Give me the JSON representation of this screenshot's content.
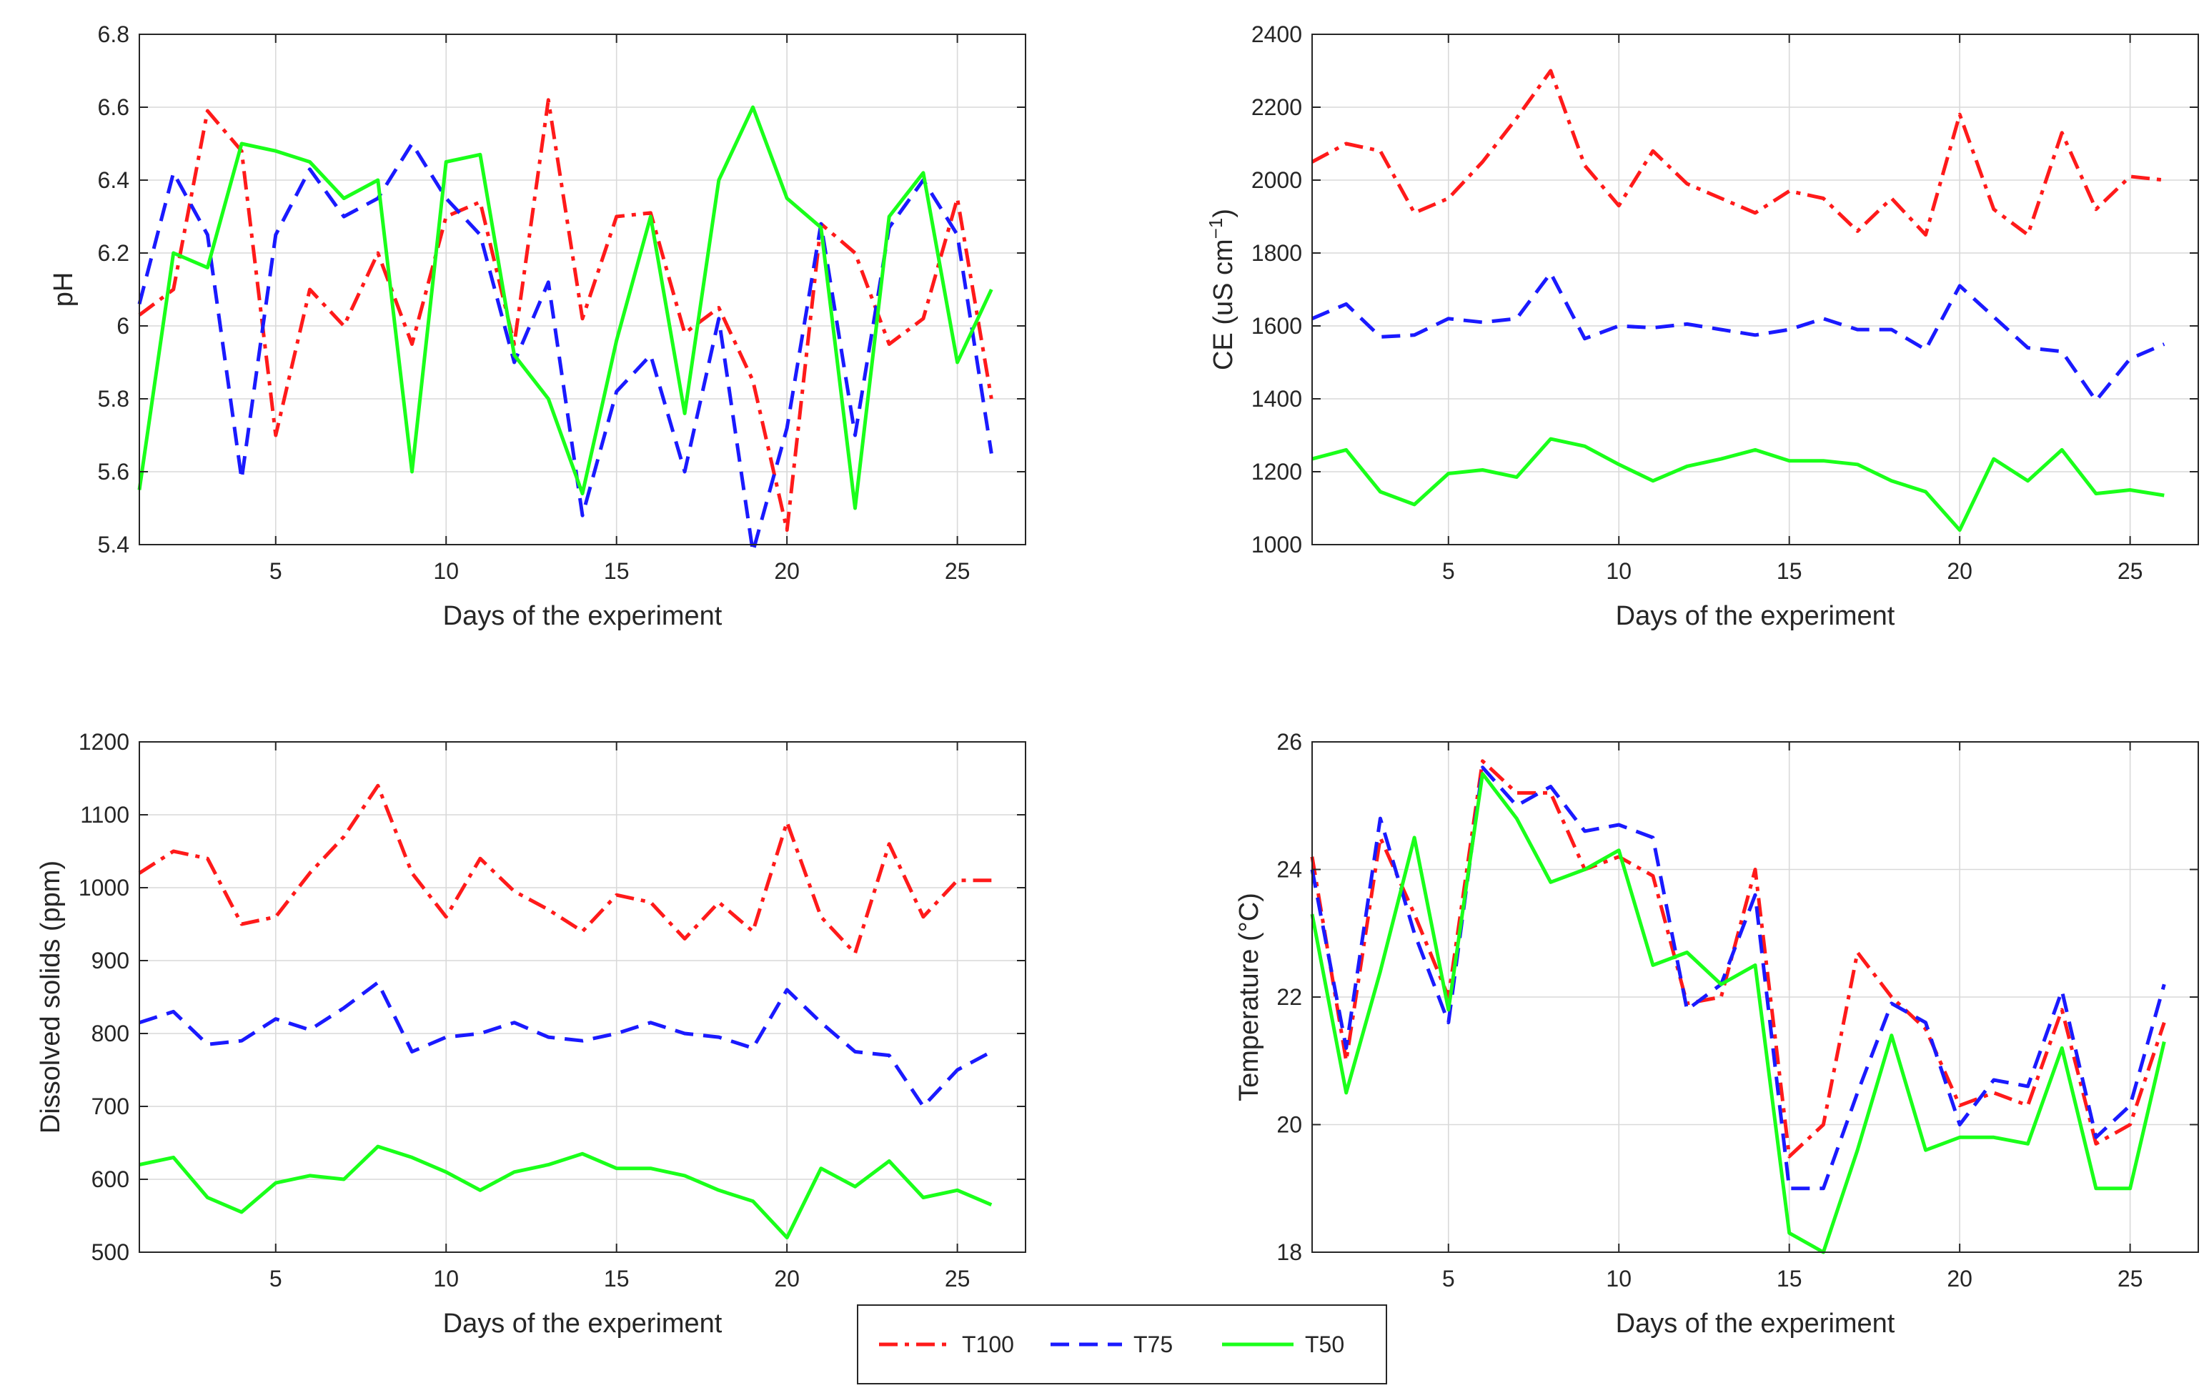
{
  "legend": {
    "entries": [
      {
        "name": "T100",
        "color": "#ff1a1a",
        "dash": "dashdot"
      },
      {
        "name": "T75",
        "color": "#1a1aff",
        "dash": "dash"
      },
      {
        "name": "T50",
        "color": "#1aff1a",
        "dash": "solid"
      }
    ]
  },
  "chart_data": [
    {
      "type": "line",
      "id": "ph",
      "xlabel": "Days of the experiment",
      "ylabel": "pH",
      "xlim": [
        1,
        27
      ],
      "ylim": [
        5.4,
        6.8
      ],
      "xticks": [
        5,
        10,
        15,
        20,
        25
      ],
      "yticks": [
        5.4,
        5.6,
        5.8,
        6,
        6.2,
        6.4,
        6.6,
        6.8
      ],
      "ytick_labels": [
        "5.4",
        "5.6",
        "5.8",
        "6",
        "6.2",
        "6.4",
        "6.6",
        "6.8"
      ],
      "grid": true,
      "x": [
        1,
        2,
        3,
        4,
        5,
        6,
        7,
        8,
        9,
        10,
        11,
        12,
        13,
        14,
        15,
        16,
        17,
        18,
        19,
        20,
        21,
        22,
        23,
        24,
        25,
        26
      ],
      "series": [
        {
          "name": "T100",
          "values": [
            6.03,
            6.1,
            6.59,
            6.48,
            5.7,
            6.1,
            6.0,
            6.2,
            5.95,
            6.3,
            6.34,
            5.95,
            6.62,
            6.02,
            6.3,
            6.31,
            5.98,
            6.05,
            5.85,
            5.44,
            6.28,
            6.2,
            5.95,
            6.02,
            6.35,
            5.8
          ]
        },
        {
          "name": "T75",
          "values": [
            6.06,
            6.42,
            6.25,
            5.58,
            6.25,
            6.43,
            6.3,
            6.35,
            6.5,
            6.35,
            6.25,
            5.9,
            6.12,
            5.48,
            5.82,
            5.92,
            5.6,
            6.02,
            5.38,
            5.72,
            6.28,
            5.7,
            6.27,
            6.4,
            6.25,
            5.65
          ]
        },
        {
          "name": "T50",
          "values": [
            5.55,
            6.2,
            6.16,
            6.5,
            6.48,
            6.45,
            6.35,
            6.4,
            5.6,
            6.45,
            6.47,
            5.92,
            5.8,
            5.54,
            5.96,
            6.3,
            5.76,
            6.4,
            6.6,
            6.35,
            6.27,
            5.5,
            6.3,
            6.42,
            5.9,
            6.1
          ]
        }
      ]
    },
    {
      "type": "line",
      "id": "ce",
      "xlabel": "Days of the experiment",
      "ylabel": "CE (uS cm",
      "ylabel_superscript": "−1",
      "ylabel_suffix": ")",
      "xlim": [
        1,
        27
      ],
      "ylim": [
        1000,
        2400
      ],
      "xticks": [
        5,
        10,
        15,
        20,
        25
      ],
      "yticks": [
        1000,
        1200,
        1400,
        1600,
        1800,
        2000,
        2200,
        2400
      ],
      "ytick_labels": [
        "1000",
        "1200",
        "1400",
        "1600",
        "1800",
        "2000",
        "2200",
        "2400"
      ],
      "grid": true,
      "x": [
        1,
        2,
        3,
        4,
        5,
        6,
        7,
        8,
        9,
        10,
        11,
        12,
        13,
        14,
        15,
        16,
        17,
        18,
        19,
        20,
        21,
        22,
        23,
        24,
        25,
        26
      ],
      "series": [
        {
          "name": "T100",
          "values": [
            2050,
            2100,
            2080,
            1910,
            1950,
            2050,
            2170,
            2300,
            2040,
            1930,
            2080,
            1990,
            1950,
            1910,
            1970,
            1950,
            1860,
            1950,
            1850,
            2180,
            1920,
            1850,
            2130,
            1920,
            2010,
            2000
          ]
        },
        {
          "name": "T75",
          "values": [
            1620,
            1660,
            1570,
            1575,
            1620,
            1610,
            1620,
            1745,
            1565,
            1600,
            1595,
            1605,
            1590,
            1575,
            1590,
            1620,
            1590,
            1590,
            1535,
            1710,
            1625,
            1540,
            1530,
            1395,
            1510,
            1550
          ]
        },
        {
          "name": "T50",
          "values": [
            1235,
            1260,
            1145,
            1110,
            1195,
            1205,
            1185,
            1290,
            1270,
            1220,
            1175,
            1215,
            1235,
            1260,
            1230,
            1230,
            1220,
            1175,
            1145,
            1040,
            1235,
            1175,
            1260,
            1140,
            1150,
            1135
          ]
        }
      ]
    },
    {
      "type": "line",
      "id": "dissolved-solids",
      "xlabel": "Days of the experiment",
      "ylabel": "Dissolved solids (ppm)",
      "xlim": [
        1,
        27
      ],
      "ylim": [
        500,
        1200
      ],
      "xticks": [
        5,
        10,
        15,
        20,
        25
      ],
      "yticks": [
        500,
        600,
        700,
        800,
        900,
        1000,
        1100,
        1200
      ],
      "ytick_labels": [
        "500",
        "600",
        "700",
        "800",
        "900",
        "1000",
        "1100",
        "1200"
      ],
      "grid": true,
      "x": [
        1,
        2,
        3,
        4,
        5,
        6,
        7,
        8,
        9,
        10,
        11,
        12,
        13,
        14,
        15,
        16,
        17,
        18,
        19,
        20,
        21,
        22,
        23,
        24,
        25,
        26
      ],
      "series": [
        {
          "name": "T100",
          "values": [
            1020,
            1050,
            1040,
            950,
            960,
            1020,
            1070,
            1140,
            1020,
            960,
            1040,
            995,
            970,
            940,
            990,
            980,
            930,
            980,
            940,
            1090,
            960,
            910,
            1060,
            960,
            1010,
            1010
          ]
        },
        {
          "name": "T75",
          "values": [
            815,
            830,
            785,
            790,
            820,
            805,
            835,
            870,
            775,
            795,
            800,
            815,
            795,
            790,
            800,
            815,
            800,
            795,
            780,
            860,
            815,
            775,
            770,
            700,
            750,
            775
          ]
        },
        {
          "name": "T50",
          "values": [
            620,
            630,
            575,
            555,
            595,
            605,
            600,
            645,
            630,
            610,
            585,
            610,
            620,
            635,
            615,
            615,
            605,
            585,
            570,
            520,
            615,
            590,
            625,
            575,
            585,
            565
          ]
        }
      ]
    },
    {
      "type": "line",
      "id": "temperature",
      "xlabel": "Days of the experiment",
      "ylabel": "Temperature (°C)",
      "xlim": [
        1,
        27
      ],
      "ylim": [
        18,
        26
      ],
      "xticks": [
        5,
        10,
        15,
        20,
        25
      ],
      "yticks": [
        18,
        20,
        22,
        24,
        26
      ],
      "ytick_labels": [
        "18",
        "20",
        "22",
        "24",
        "26"
      ],
      "grid": true,
      "x": [
        1,
        2,
        3,
        4,
        5,
        6,
        7,
        8,
        9,
        10,
        11,
        12,
        13,
        14,
        15,
        16,
        17,
        18,
        19,
        20,
        21,
        22,
        23,
        24,
        25,
        26
      ],
      "series": [
        {
          "name": "T100",
          "values": [
            24.2,
            21.0,
            24.5,
            23.3,
            22.0,
            25.7,
            25.2,
            25.2,
            24.0,
            24.2,
            23.9,
            21.9,
            22.0,
            24.0,
            19.5,
            20.0,
            22.7,
            22.0,
            21.5,
            20.3,
            20.5,
            20.3,
            21.8,
            19.7,
            20.0,
            21.6
          ]
        },
        {
          "name": "T75",
          "values": [
            24.0,
            21.2,
            24.8,
            23.0,
            21.6,
            25.6,
            25.0,
            25.3,
            24.6,
            24.7,
            24.5,
            21.8,
            22.2,
            23.6,
            19.0,
            19.0,
            20.5,
            21.9,
            21.6,
            20.0,
            20.7,
            20.6,
            22.1,
            19.8,
            20.3,
            22.2
          ]
        },
        {
          "name": "T50",
          "values": [
            23.3,
            20.5,
            22.4,
            24.5,
            21.8,
            25.5,
            24.8,
            23.8,
            24.0,
            24.3,
            22.5,
            22.7,
            22.2,
            22.5,
            18.3,
            18.0,
            19.6,
            21.4,
            19.6,
            19.8,
            19.8,
            19.7,
            21.2,
            19.0,
            19.0,
            21.3
          ]
        }
      ]
    }
  ]
}
